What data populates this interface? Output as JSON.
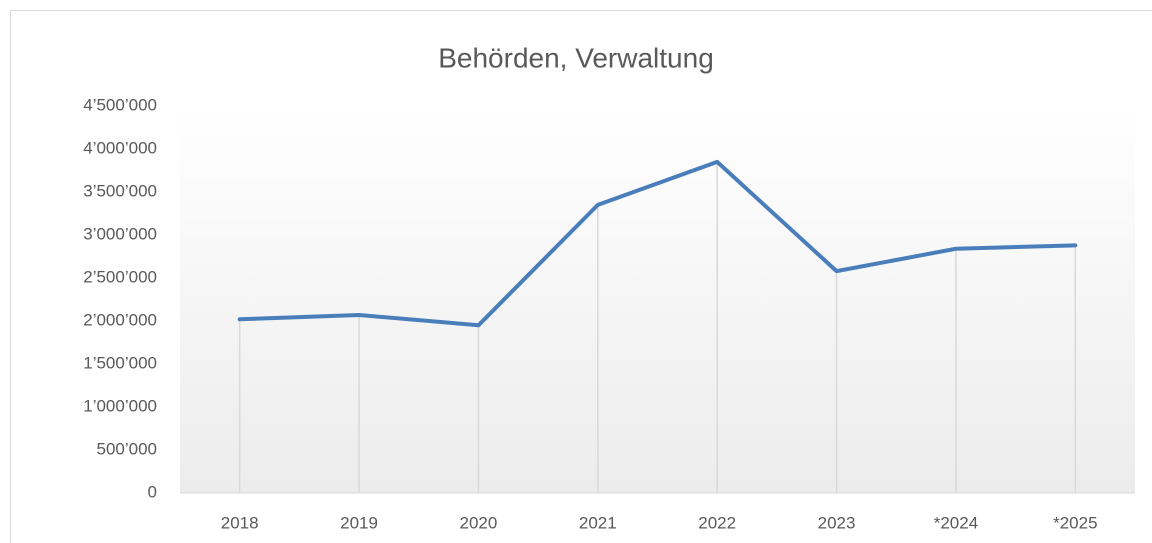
{
  "chart_data": {
    "type": "line",
    "title": "Behörden, Verwaltung",
    "categories": [
      "2018",
      "2019",
      "2020",
      "2021",
      "2022",
      "2023",
      "*2024",
      "*2025"
    ],
    "series": [
      {
        "name": "Behörden, Verwaltung",
        "color": "#4a7ebb",
        "values": [
          2020000,
          2070000,
          1950000,
          3350000,
          3850000,
          2580000,
          2840000,
          2880000
        ]
      }
    ],
    "ylim": [
      0,
      4500000
    ],
    "yticks": [
      0,
      {
        "value": 500000,
        "label": "500’000"
      },
      {
        "value": 1000000,
        "label": "1’000’000"
      },
      {
        "value": 1500000,
        "label": "1’500’000"
      },
      {
        "value": 2000000,
        "label": "2’000’000"
      },
      {
        "value": 2500000,
        "label": "2’500’000"
      },
      {
        "value": 3000000,
        "label": "3’000’000"
      },
      {
        "value": 3500000,
        "label": "3’500’000"
      },
      {
        "value": 4000000,
        "label": "4’000’000"
      },
      {
        "value": 4500000,
        "label": "4’500’000"
      }
    ],
    "grid": false,
    "drop_lines": true
  }
}
